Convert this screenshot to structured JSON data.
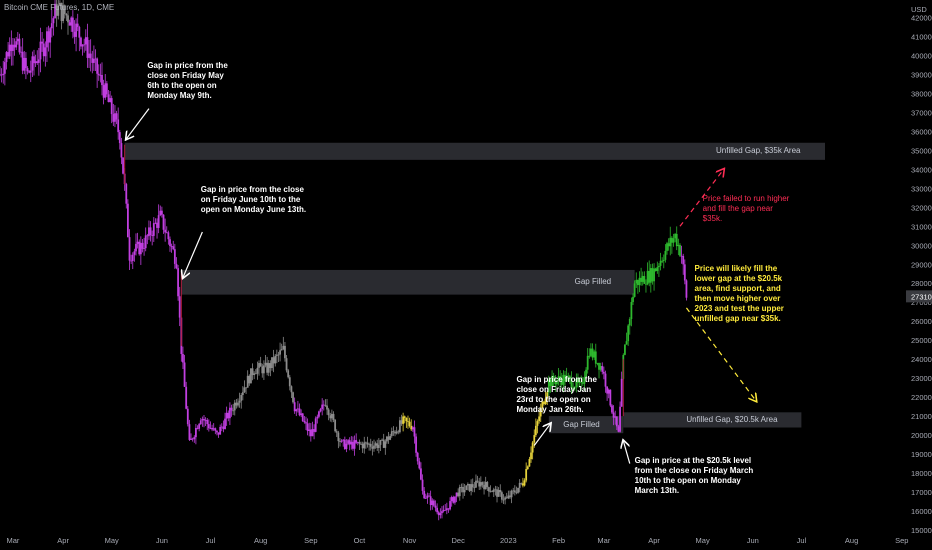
{
  "header": {
    "title": "Bitcoin CME Futures, 1D, CME"
  },
  "colors": {
    "background": "#000000",
    "bar_up": "#2eb82e",
    "bar_down": "#c13fe0",
    "bar_neutral": "#8c8c8c",
    "bar_yellow": "#e6d23a",
    "gap_zone": "#2a2b30",
    "gap_line": "#b01c3c",
    "price_box": "#3a3b40",
    "arrow_white": "#ffffff",
    "arrow_red": "#ff2d55",
    "arrow_yellow": "#ffeb3b"
  },
  "chart_data": {
    "type": "candlestick",
    "title": "Bitcoin CME Futures, 1D, CME",
    "currency": "USD",
    "ylim": [
      15000,
      42500
    ],
    "y_ticks": [
      15000,
      16000,
      17000,
      18000,
      19000,
      20000,
      21000,
      22000,
      23000,
      24000,
      25000,
      26000,
      27000,
      28000,
      29000,
      30000,
      31000,
      32000,
      33000,
      34000,
      35000,
      36000,
      37000,
      38000,
      39000,
      40000,
      41000,
      42000
    ],
    "current_price": 27310,
    "x_ticks": [
      {
        "label": "Mar",
        "date": "2022-03-01"
      },
      {
        "label": "Apr",
        "date": "2022-04-01"
      },
      {
        "label": "May",
        "date": "2022-05-01"
      },
      {
        "label": "Jun",
        "date": "2022-06-01"
      },
      {
        "label": "Jul",
        "date": "2022-07-01"
      },
      {
        "label": "Aug",
        "date": "2022-08-01"
      },
      {
        "label": "Sep",
        "date": "2022-09-01"
      },
      {
        "label": "Oct",
        "date": "2022-10-01"
      },
      {
        "label": "Nov",
        "date": "2022-11-01"
      },
      {
        "label": "Dec",
        "date": "2022-12-01"
      },
      {
        "label": "2023",
        "date": "2023-01-01"
      },
      {
        "label": "Feb",
        "date": "2023-02-01"
      },
      {
        "label": "Mar",
        "date": "2023-03-01"
      },
      {
        "label": "Apr",
        "date": "2023-04-01"
      },
      {
        "label": "May",
        "date": "2023-05-01"
      },
      {
        "label": "Jun",
        "date": "2023-06-01"
      },
      {
        "label": "Jul",
        "date": "2023-07-01"
      },
      {
        "label": "Aug",
        "date": "2023-08-01"
      },
      {
        "label": "Sep",
        "date": "2023-09-01"
      }
    ],
    "price_path": [
      [
        "2022-02-21",
        39000,
        "down"
      ],
      [
        "2022-03-01",
        41000,
        "down"
      ],
      [
        "2022-03-10",
        39000,
        "down"
      ],
      [
        "2022-03-20",
        40500,
        "down"
      ],
      [
        "2022-03-28",
        42500,
        "neutral"
      ],
      [
        "2022-04-05",
        42000,
        "down"
      ],
      [
        "2022-04-15",
        40500,
        "down"
      ],
      [
        "2022-04-25",
        38500,
        "down"
      ],
      [
        "2022-05-06",
        35800,
        "down"
      ],
      [
        "2022-05-09",
        33000,
        "down"
      ],
      [
        "2022-05-12",
        29500,
        "down"
      ],
      [
        "2022-05-20",
        30000,
        "down"
      ],
      [
        "2022-05-31",
        31500,
        "down"
      ],
      [
        "2022-06-10",
        29200,
        "down"
      ],
      [
        "2022-06-13",
        24500,
        "down"
      ],
      [
        "2022-06-18",
        19500,
        "down"
      ],
      [
        "2022-06-25",
        21000,
        "down"
      ],
      [
        "2022-07-05",
        20000,
        "down"
      ],
      [
        "2022-07-15",
        21500,
        "neutral"
      ],
      [
        "2022-07-28",
        23500,
        "neutral"
      ],
      [
        "2022-08-05",
        23500,
        "neutral"
      ],
      [
        "2022-08-15",
        24500,
        "neutral"
      ],
      [
        "2022-08-22",
        21500,
        "down"
      ],
      [
        "2022-09-01",
        20000,
        "down"
      ],
      [
        "2022-09-10",
        21800,
        "neutral"
      ],
      [
        "2022-09-20",
        19500,
        "down"
      ],
      [
        "2022-10-01",
        19500,
        "neutral"
      ],
      [
        "2022-10-15",
        19500,
        "neutral"
      ],
      [
        "2022-10-28",
        20700,
        "yellow"
      ],
      [
        "2022-11-03",
        20500,
        "down"
      ],
      [
        "2022-11-09",
        17000,
        "down"
      ],
      [
        "2022-11-21",
        15800,
        "down"
      ],
      [
        "2022-12-01",
        17000,
        "neutral"
      ],
      [
        "2022-12-15",
        17500,
        "neutral"
      ],
      [
        "2022-12-31",
        16600,
        "neutral"
      ],
      [
        "2023-01-10",
        17500,
        "yellow"
      ],
      [
        "2023-01-20",
        21000,
        "yellow"
      ],
      [
        "2023-01-26",
        22800,
        "up"
      ],
      [
        "2023-02-05",
        23000,
        "up"
      ],
      [
        "2023-02-15",
        22500,
        "up"
      ],
      [
        "2023-02-20",
        24500,
        "up"
      ],
      [
        "2023-02-28",
        23500,
        "down"
      ],
      [
        "2023-03-10",
        20000,
        "down"
      ],
      [
        "2023-03-13",
        24000,
        "up"
      ],
      [
        "2023-03-20",
        28000,
        "up"
      ],
      [
        "2023-03-31",
        28500,
        "up"
      ],
      [
        "2023-04-10",
        30000,
        "up"
      ],
      [
        "2023-04-14",
        30500,
        "up"
      ],
      [
        "2023-04-18",
        29500,
        "down"
      ],
      [
        "2023-04-21",
        27300,
        "down"
      ]
    ],
    "zones": [
      {
        "label": "Unfilled Gap, $35k Area",
        "low": 34500,
        "high": 35400,
        "start": "2022-05-09",
        "end": "2023-09-01"
      },
      {
        "label": "Gap Filled",
        "low": 27400,
        "high": 28700,
        "start": "2022-06-13",
        "end": "2023-03-20"
      },
      {
        "label": "Gap Filled",
        "low": 20100,
        "high": 21000,
        "start": "2023-01-26",
        "end": "2023-03-13"
      },
      {
        "label": "Unfilled Gap, $20.5k Area",
        "low": 20400,
        "high": 21200,
        "start": "2023-03-13",
        "end": "2023-07-01"
      }
    ],
    "annotations": [
      {
        "text": "Gap in price from the close on Friday May 6th to the open on Monday May 9th.",
        "lines": [
          "Gap in price from the",
          "close on Friday May",
          "6th to the open on",
          "Monday May 9th."
        ],
        "color": "white"
      },
      {
        "text": "Gap in price from the close on Friday June 10th to the open on Monday June 13th.",
        "lines": [
          "Gap in price from the close",
          "on Friday June 10th to the",
          "open on Monday June 13th."
        ],
        "color": "white"
      },
      {
        "text": "Gap in price from the close on Friday Jan 23rd to the open on Monday Jan 26th.",
        "lines": [
          "Gap in price from the",
          "close on Friday Jan",
          "23rd to the open on",
          "Monday Jan 26th."
        ],
        "color": "white"
      },
      {
        "text": "Gap in price at the $20.5k level from the close on Friday March 10th to the open on Monday March 13th.",
        "lines": [
          "Gap in price at the $20.5k level",
          "from the close on Friday March",
          "10th to the open on Monday",
          "March 13th."
        ],
        "color": "white"
      },
      {
        "text": "Price failed to run higher and fill the gap near $35k.",
        "lines": [
          "Price failed to run higher",
          "and fill the gap near",
          "$35k."
        ],
        "color": "red"
      },
      {
        "text": "Price will likely fill the lower gap at the $20.5k area, find support, and then move higher over 2023 and test the upper unfilled gap near $35k.",
        "lines": [
          "Price will likely fill the",
          "lower gap at the $20.5k",
          "area, find support, and",
          "then move higher over",
          "2023 and test the upper",
          "unfilled gap near $35k."
        ],
        "color": "yellow"
      }
    ]
  }
}
